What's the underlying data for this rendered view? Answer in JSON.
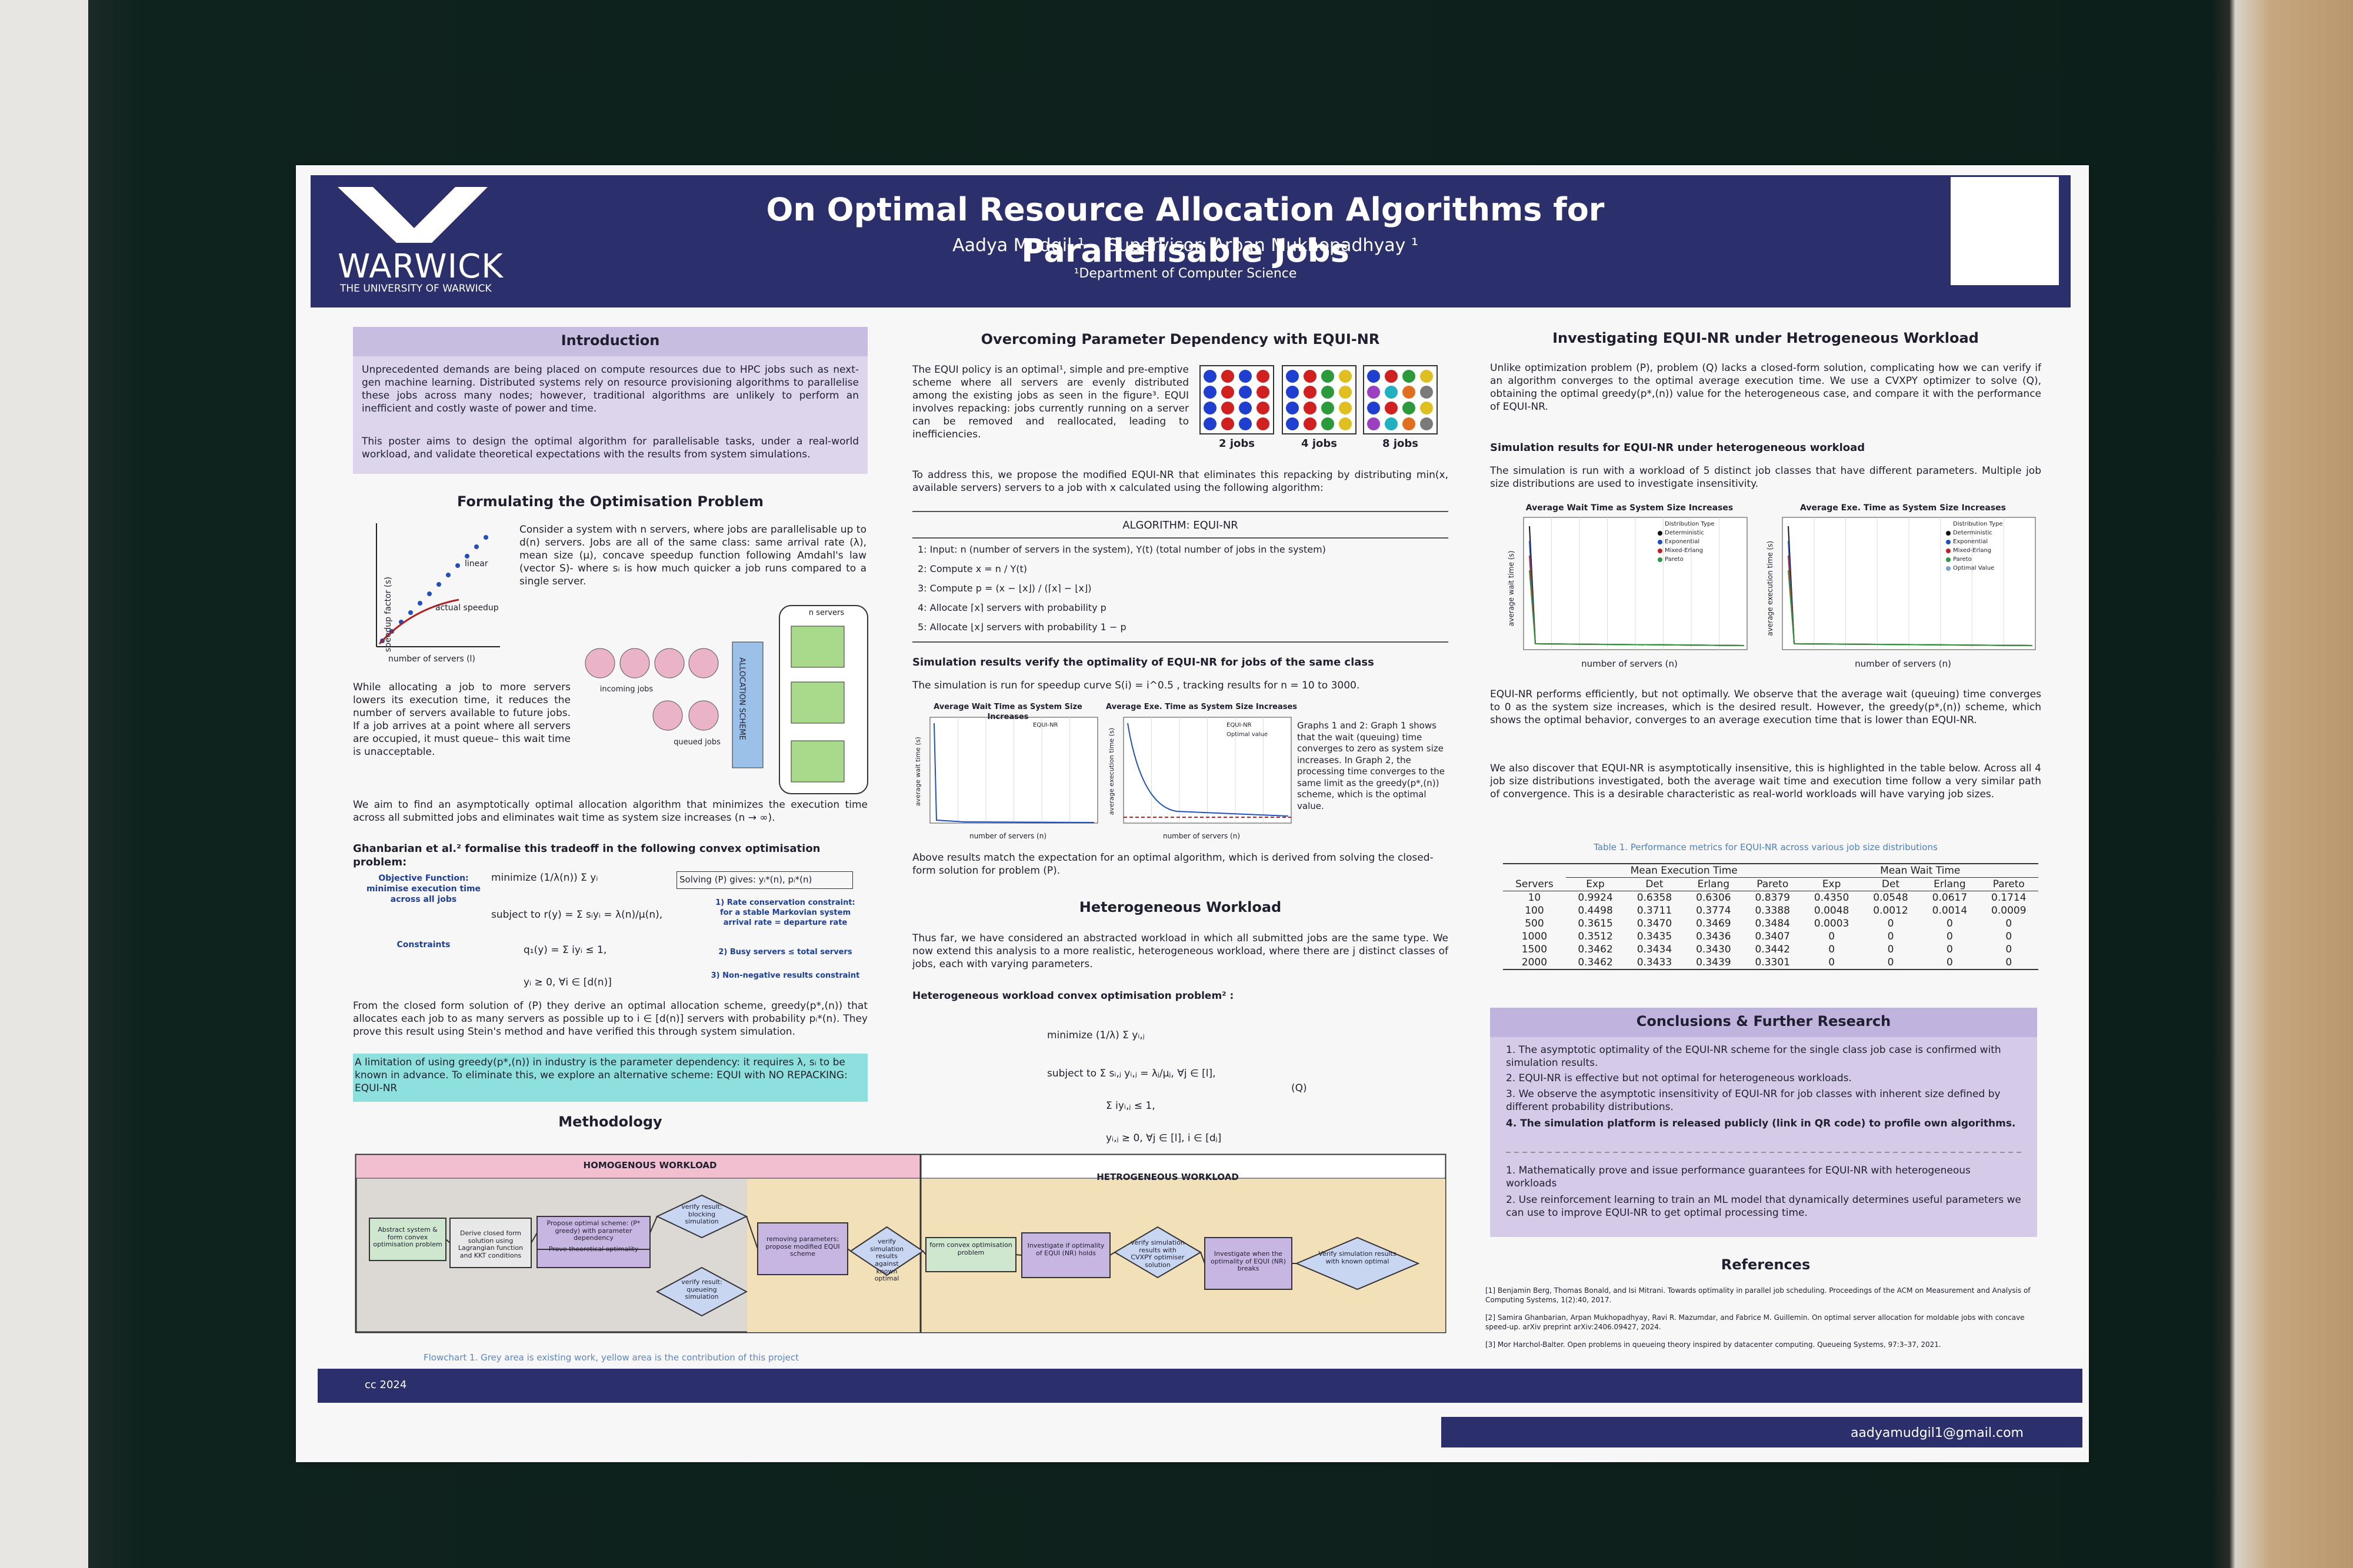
{
  "header": {
    "title": "On Optimal Resource Allocation Algorithms for Parallelisable Jobs",
    "authors": "Aadya Mudgil ¹    Supervisor: Arpan Mukhopadhyay ¹",
    "department": "¹Department of Computer Science",
    "logo": "WARWICK",
    "logo_sub": "THE UNIVERSITY OF WARWICK"
  },
  "introduction": {
    "heading": "Introduction",
    "p1": "Unprecedented demands are being placed on compute resources due to HPC jobs such as next-gen machine learning.  Distributed systems rely on resource provisioning algorithms to parallelise these jobs across many nodes; however, traditional algorithms are unlikely to perform an inefficient and costly waste of power and time.",
    "p2": "This poster aims to design the optimal algorithm for parallelisable tasks, under a real-world workload, and validate theoretical expectations with the results from system simulations."
  },
  "formulating": {
    "heading": "Formulating the Optimisation Problem",
    "p1": "Consider a system with n servers, where jobs are parallelisable up to d(n) servers.  Jobs are all of the same class: same arrival rate (λ), mean size (μ), concave speedup function following Amdahl's law (vector S)- where sᵢ is how much quicker a job runs compared to a single server.",
    "graph_labels": [
      "linear",
      "actual speedup",
      "speedup factor (s)",
      "number of servers (l)"
    ],
    "p2": "While allocating a job to more servers lowers its execution time, it reduces the number of servers available to future jobs.  If a job arrives at a point where all servers are occupied, it must queue– this wait time is unacceptable.",
    "diagram_labels": [
      "incoming jobs",
      "queued jobs",
      "ALLOCATION SCHEME",
      "n servers"
    ],
    "p3": "We aim to find an asymptotically optimal allocation algorithm that minimizes the execution time across all submitted jobs and eliminates wait time as system size increases (n → ∞).",
    "p4": "Ghanbarian et al.² formalise this tradeoff in the following convex optimisation problem:",
    "objective_label": "Objective Function: minimise execution time across all jobs",
    "constraints_label": "Constraints",
    "equations": [
      "minimize  (1/λ(n)) Σ yᵢ",
      "subject to   r(y) = Σ sᵢyᵢ = λ(n)/μ(n),",
      "q₁(y) = Σ iyᵢ ≤ 1,",
      "yᵢ ≥ 0,   ∀i ∈ [d(n)]"
    ],
    "solving": "Solving (P) gives: yᵢ*(n), pᵢ*(n)",
    "notes": [
      "1) Rate conservation constraint: for a stable Markovian system arrival rate = departure rate",
      "2) Busy servers ≤ total servers",
      "3) Non-negative results constraint"
    ],
    "p5": "From the closed form solution of (P) they derive an optimal allocation scheme, greedy(p*,(n)) that allocates each job to as many servers as possible up to i ∈ [d(n)] servers with probability pᵢ*(n). They prove this result using Stein's method and have verified this through system simulation.",
    "highlight": "A limitation of using greedy(p*,(n)) in industry is the parameter dependency: it requires λ, sᵢ to be known in advance. To eliminate this, we explore an alternative scheme: EQUI with NO REPACKING: EQUI-NR"
  },
  "methodology": {
    "heading": "Methodology",
    "sections": [
      "HOMOGENOUS WORKLOAD",
      "HETROGENEOUS WORKLOAD"
    ],
    "nodes": [
      "Abstract system & form convex optimisation problem",
      "Derive closed form solution using Lagrangian function and KKT conditions",
      "Propose optimal scheme: (P* greedy) with parameter dependency",
      "Prove theoretical optimality",
      "verify result: blocking simulation",
      "verify result: queueing simulation",
      "removing parameters: propose modified EQUI scheme",
      "verify simulation results against known optimal",
      "form convex optimisation problem",
      "Investigate if optimality of EQUI (NR) holds",
      "verify simulation results with CVXPY optimiser solution",
      "Investigate when the optimality of EQUI (NR) breaks",
      "Verify simulation results with known optimal"
    ],
    "caption": "Flowchart 1. Grey area is existing work, yellow area is the contribution of this project"
  },
  "parameter": {
    "heading": "Overcoming Parameter Dependency with EQUI-NR",
    "p1": "The EQUI policy is an optimal¹, simple and pre-emptive scheme where all servers are evenly distributed among the existing jobs as seen in the figure³. EQUI involves repacking: jobs currently running on a server can be removed and reallocated, leading to inefficiencies.",
    "figure_labels": [
      "2 jobs",
      "4 jobs",
      "8 jobs"
    ],
    "p2": "To address this, we propose the modified EQUI-NR that eliminates this repacking by distributing min(x, available servers) servers to a job with x calculated using the following algorithm:",
    "algorithm_title": "ALGORITHM: EQUI-NR",
    "steps": [
      "1:  Input: n (number of servers in the system), Y(t) (total number of jobs in the system)",
      "2:  Compute x = n / Y(t)",
      "3:  Compute p = (x − ⌊x⌋) / (⌈x⌉ − ⌊x⌋)",
      "4:  Allocate ⌈x⌉ servers with probability p",
      "5:  Allocate ⌊x⌋ servers with probability 1 − p"
    ]
  },
  "simulation": {
    "heading": "Simulation results verify the optimality of EQUI-NR for jobs of the same class",
    "p1": "The simulation is run for speedup curve S(i) = i^0.5 , tracking results for n = 10 to 3000.",
    "chart_titles": [
      "Average Wait Time as System Size Increases",
      "Average Exe. Time as System Size Increases"
    ],
    "legend": [
      "EQUI-NR",
      "Optimal value"
    ],
    "xlabel": "number of servers (n)",
    "ylabels": [
      "average wait time (s)",
      "average execution time (s)"
    ],
    "note": "Graphs 1 and 2: Graph 1 shows that the wait (queuing) time converges to zero as system size increases. In Graph 2, the processing time converges to the same limit as the greedy(p*,(n)) scheme, which is the optimal value.",
    "p2": "Above results match the expectation for an optimal algorithm, which is derived from solving the closed-form solution for problem (P)."
  },
  "heterogeneous": {
    "heading": "Heterogeneous Workload",
    "p1": "Thus far, we have considered an abstracted workload in which all submitted jobs are the same type. We now extend this analysis to a more realistic, heterogeneous workload, where there are j distinct classes of jobs, each with varying parameters.",
    "p2": "Heterogeneous workload convex optimisation problem² :",
    "equations": [
      "minimize   (1/λ) Σ yᵢ,ⱼ",
      "subject to   Σ sᵢ,ⱼ yᵢ,ⱼ = λⱼ/μⱼ, ∀j ∈ [l],",
      "Σ iyᵢ,ⱼ ≤ 1,",
      "yᵢ,ⱼ ≥ 0,    ∀j ∈ [l], i ∈ [dⱼ]",
      "(Q)"
    ]
  },
  "investigating": {
    "heading": "Investigating EQUI-NR under Hetrogeneous Workload",
    "p1": "Unlike optimization problem (P), problem (Q) lacks a closed-form solution, complicating how we can verify if an algorithm converges to the optimal average execution time.  We use a CVXPY optimizer to solve (Q), obtaining the optimal greedy(p*,(n)) value for the heterogeneous case, and compare it with the performance of EQUI-NR.",
    "subheading": "Simulation results for EQUI-NR under heterogeneous workload",
    "p2": "The simulation is run with a workload of 5 distinct job classes that have different parameters. Multiple job size distributions are used to investigate insensitivity.",
    "chart_titles": [
      "Average Wait Time as System Size Increases",
      "Average Exe. Time as System Size Increases"
    ],
    "legend_title": "Distribution Type",
    "legend": [
      "Deterministic",
      "Exponential",
      "Mixed-Erlang",
      "Pareto",
      "Optimal Value"
    ],
    "xlabel": "number of servers (n)",
    "ylabels": [
      "average wait time (s)",
      "average execution time (s)"
    ],
    "p3": "EQUI-NR performs efficiently, but not optimally.  We observe that the average wait (queuing) time converges to 0 as the system size increases, which is the desired result.  However, the greedy(p*,(n)) scheme, which shows the optimal behavior, converges to an average execution time that is lower than EQUI-NR.",
    "p4": "We also discover that EQUI-NR is asymptotically insensitive, this is highlighted in the table below.  Across all 4 job size distributions investigated, both the average wait time and execution time follow a very similar path of convergence.  This is a desirable characteristic as real-world workloads will have varying job sizes."
  },
  "table": {
    "caption": "Table 1. Performance metrics for EQUI-NR across various job size distributions",
    "groups": [
      "Mean Execution Time",
      "Mean Wait Time"
    ],
    "columns": [
      "Servers",
      "Exp",
      "Det",
      "Erlang",
      "Pareto",
      "Exp",
      "Det",
      "Erlang",
      "Pareto"
    ],
    "rows": [
      [
        "10",
        "0.9924",
        "0.6358",
        "0.6306",
        "0.8379",
        "0.4350",
        "0.0548",
        "0.0617",
        "0.1714"
      ],
      [
        "100",
        "0.4498",
        "0.3711",
        "0.3774",
        "0.3388",
        "0.0048",
        "0.0012",
        "0.0014",
        "0.0009"
      ],
      [
        "500",
        "0.3615",
        "0.3470",
        "0.3469",
        "0.3484",
        "0.0003",
        "0",
        "0",
        "0"
      ],
      [
        "1000",
        "0.3512",
        "0.3435",
        "0.3436",
        "0.3407",
        "0",
        "0",
        "0",
        "0"
      ],
      [
        "1500",
        "0.3462",
        "0.3434",
        "0.3430",
        "0.3442",
        "0",
        "0",
        "0",
        "0"
      ],
      [
        "2000",
        "0.3462",
        "0.3433",
        "0.3439",
        "0.3301",
        "0",
        "0",
        "0",
        "0"
      ]
    ]
  },
  "conclusions": {
    "heading": "Conclusions & Further Research",
    "items": [
      "1.  The asymptotic optimality of the EQUI-NR scheme for the single class job case is confirmed with simulation results.",
      "2.  EQUI-NR is effective but not optimal for heterogeneous workloads.",
      "3.  We observe the asymptotic insensitivity of EQUI-NR for job classes with inherent size defined by different probability distributions.",
      "4.  The simulation platform is released publicly (link in QR code) to profile own algorithms."
    ],
    "future": [
      "1.  Mathematically prove and issue performance guarantees for EQUI-NR with heterogeneous workloads",
      "2.  Use reinforcement learning to train an ML model that dynamically determines useful parameters we can use to improve EQUI-NR to get optimal processing time."
    ]
  },
  "references": {
    "heading": "References",
    "items": [
      "[1]  Benjamin Berg, Thomas Bonald, and Isi Mitrani. Towards optimality in parallel job scheduling. Proceedings of the ACM on Measurement and Analysis of Computing Systems, 1(2):40, 2017.",
      "[2]  Samira Ghanbarian, Arpan Mukhopadhyay, Ravi R. Mazumdar, and Fabrice M. Guillemin. On optimal server allocation for moldable jobs with concave speed-up. arXiv preprint arXiv:2406.09427, 2024.",
      "[3]  Mor Harchol-Balter. Open problems in queueing theory inspired by datacenter computing. Queueing Systems, 97:3–37, 2021."
    ]
  },
  "footer": {
    "left": "cc 2024",
    "email": "aadyamudgil1@gmail.com"
  }
}
